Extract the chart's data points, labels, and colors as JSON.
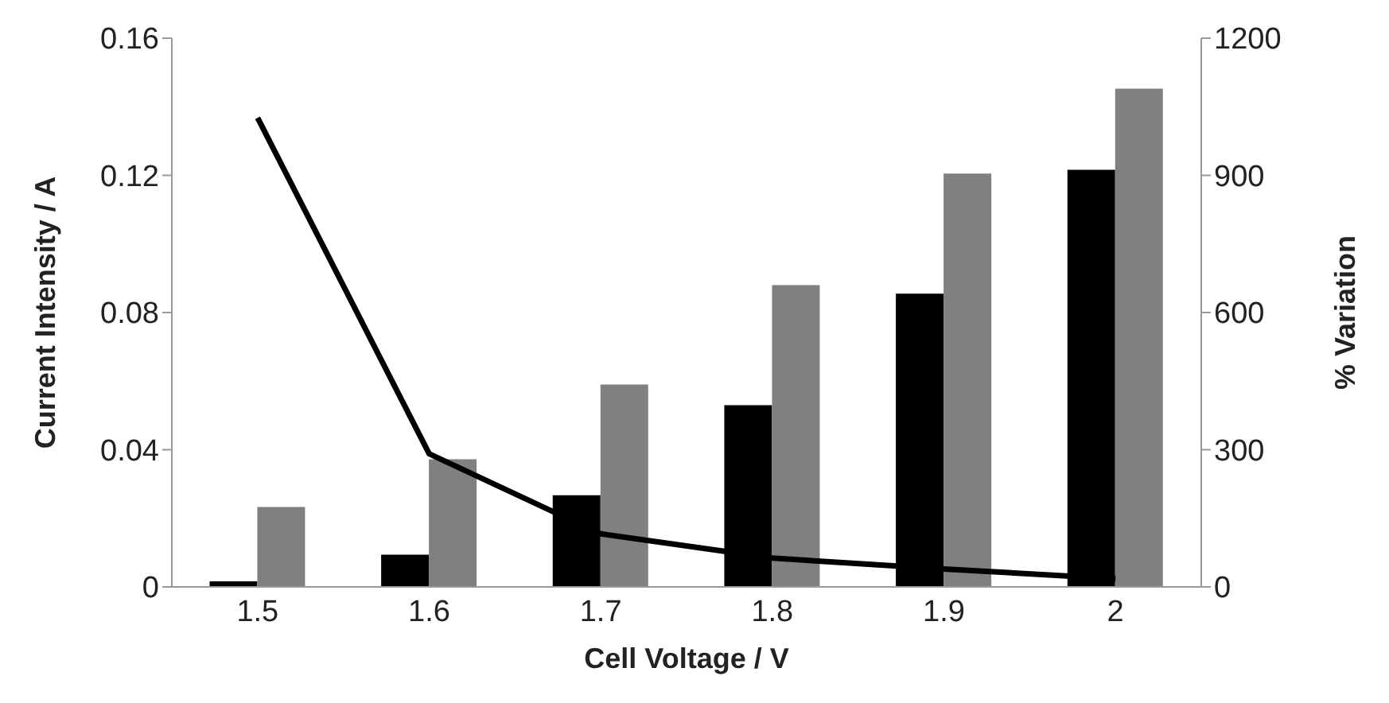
{
  "chart_data": {
    "type": "bar",
    "xlabel": "Cell Voltage / V",
    "ylabel": "Current Intensity / A",
    "y2label": "% Variation",
    "categories": [
      "1.5",
      "1.6",
      "1.7",
      "1.8",
      "1.9",
      "2"
    ],
    "series": [
      {
        "color": "#000000",
        "values": [
          0.0016,
          0.0094,
          0.0267,
          0.053,
          0.0855,
          0.1216
        ]
      },
      {
        "color": "#808080",
        "values": [
          0.0233,
          0.0372,
          0.059,
          0.088,
          0.1205,
          0.1453
        ]
      },
      {
        "type": "line",
        "color": "#000000",
        "axis": "y2",
        "values": [
          1026,
          291,
          116,
          63,
          39,
          18
        ]
      }
    ],
    "ylim": [
      0,
      0.16
    ],
    "yticks": [
      0,
      0.04,
      0.08,
      0.12,
      0.16
    ],
    "y2lim": [
      0,
      1200
    ],
    "y2ticks": [
      0,
      300,
      600,
      900,
      1200
    ],
    "grid": false,
    "legend": false,
    "marker": "none"
  }
}
